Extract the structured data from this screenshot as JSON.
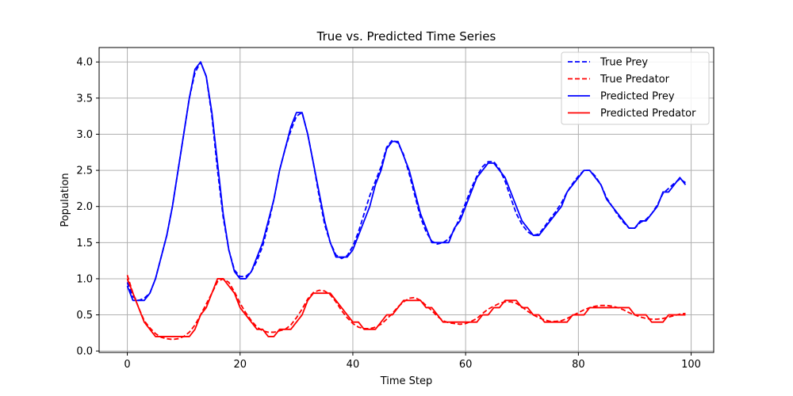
{
  "chart_data": {
    "type": "line",
    "title": "True vs. Predicted Time Series",
    "xlabel": "Time Step",
    "ylabel": "Population",
    "xlim": [
      -5,
      104
    ],
    "ylim": [
      -0.02,
      4.2
    ],
    "xticks": [
      0,
      20,
      40,
      60,
      80,
      100
    ],
    "yticks": [
      0.0,
      0.5,
      1.0,
      1.5,
      2.0,
      2.5,
      3.0,
      3.5,
      4.0
    ],
    "ytick_labels": [
      "0.0",
      "0.5",
      "1.0",
      "1.5",
      "2.0",
      "2.5",
      "3.0",
      "3.5",
      "4.0"
    ],
    "grid": true,
    "legend_position": "top-right",
    "x": [
      0,
      1,
      2,
      3,
      4,
      5,
      6,
      7,
      8,
      9,
      10,
      11,
      12,
      13,
      14,
      15,
      16,
      17,
      18,
      19,
      20,
      21,
      22,
      23,
      24,
      25,
      26,
      27,
      28,
      29,
      30,
      31,
      32,
      33,
      34,
      35,
      36,
      37,
      38,
      39,
      40,
      41,
      42,
      43,
      44,
      45,
      46,
      47,
      48,
      49,
      50,
      51,
      52,
      53,
      54,
      55,
      56,
      57,
      58,
      59,
      60,
      61,
      62,
      63,
      64,
      65,
      66,
      67,
      68,
      69,
      70,
      71,
      72,
      73,
      74,
      75,
      76,
      77,
      78,
      79,
      80,
      81,
      82,
      83,
      84,
      85,
      86,
      87,
      88,
      89,
      90,
      91,
      92,
      93,
      94,
      95,
      96,
      97,
      98,
      99
    ],
    "series": [
      {
        "name": "True Prey",
        "color": "#0000ff",
        "style": "dashed",
        "values": [
          0.95,
          0.75,
          0.7,
          0.73,
          0.8,
          1.0,
          1.3,
          1.6,
          2.0,
          2.5,
          3.0,
          3.5,
          3.85,
          4.0,
          3.8,
          3.25,
          2.5,
          1.85,
          1.4,
          1.12,
          1.03,
          1.03,
          1.1,
          1.25,
          1.45,
          1.75,
          2.1,
          2.5,
          2.8,
          3.05,
          3.25,
          3.3,
          3.0,
          2.6,
          2.15,
          1.75,
          1.5,
          1.33,
          1.28,
          1.32,
          1.45,
          1.65,
          1.9,
          2.15,
          2.35,
          2.55,
          2.82,
          2.92,
          2.88,
          2.72,
          2.45,
          2.15,
          1.85,
          1.65,
          1.52,
          1.48,
          1.5,
          1.55,
          1.68,
          1.85,
          2.05,
          2.25,
          2.42,
          2.55,
          2.62,
          2.62,
          2.52,
          2.35,
          2.12,
          1.9,
          1.75,
          1.65,
          1.6,
          1.62,
          1.72,
          1.83,
          1.93,
          2.05,
          2.2,
          2.32,
          2.42,
          2.5,
          2.5,
          2.42,
          2.3,
          2.12,
          2.0,
          1.88,
          1.78,
          1.7,
          1.7,
          1.78,
          1.82,
          1.9,
          2.02,
          2.18,
          2.25,
          2.32,
          2.38,
          2.33
        ]
      },
      {
        "name": "True Predator",
        "color": "#ff0000",
        "style": "dashed",
        "values": [
          1.05,
          0.8,
          0.6,
          0.42,
          0.32,
          0.24,
          0.19,
          0.17,
          0.16,
          0.17,
          0.2,
          0.26,
          0.36,
          0.5,
          0.65,
          0.8,
          0.96,
          1.0,
          0.95,
          0.82,
          0.66,
          0.53,
          0.42,
          0.33,
          0.28,
          0.26,
          0.26,
          0.28,
          0.3,
          0.36,
          0.46,
          0.58,
          0.72,
          0.81,
          0.84,
          0.83,
          0.78,
          0.68,
          0.56,
          0.46,
          0.38,
          0.33,
          0.31,
          0.31,
          0.33,
          0.37,
          0.44,
          0.52,
          0.61,
          0.68,
          0.73,
          0.74,
          0.7,
          0.63,
          0.56,
          0.48,
          0.42,
          0.39,
          0.38,
          0.37,
          0.38,
          0.41,
          0.45,
          0.52,
          0.58,
          0.62,
          0.66,
          0.68,
          0.68,
          0.66,
          0.61,
          0.55,
          0.5,
          0.46,
          0.43,
          0.41,
          0.41,
          0.42,
          0.45,
          0.49,
          0.53,
          0.57,
          0.6,
          0.62,
          0.63,
          0.63,
          0.62,
          0.6,
          0.57,
          0.53,
          0.5,
          0.47,
          0.45,
          0.44,
          0.44,
          0.45,
          0.47,
          0.49,
          0.51,
          0.52
        ]
      },
      {
        "name": "Predicted Prey",
        "color": "#0000ff",
        "style": "solid",
        "values": [
          0.9,
          0.7,
          0.7,
          0.7,
          0.8,
          1.0,
          1.3,
          1.6,
          2.0,
          2.5,
          3.0,
          3.5,
          3.9,
          4.0,
          3.8,
          3.3,
          2.6,
          1.9,
          1.4,
          1.1,
          1.0,
          1.0,
          1.1,
          1.3,
          1.5,
          1.8,
          2.1,
          2.5,
          2.8,
          3.1,
          3.3,
          3.3,
          3.0,
          2.6,
          2.2,
          1.8,
          1.5,
          1.3,
          1.3,
          1.3,
          1.4,
          1.6,
          1.8,
          2.0,
          2.3,
          2.5,
          2.8,
          2.9,
          2.9,
          2.7,
          2.5,
          2.2,
          1.9,
          1.7,
          1.5,
          1.5,
          1.5,
          1.5,
          1.7,
          1.8,
          2.0,
          2.2,
          2.4,
          2.5,
          2.6,
          2.6,
          2.5,
          2.4,
          2.2,
          2.0,
          1.8,
          1.7,
          1.6,
          1.6,
          1.7,
          1.8,
          1.9,
          2.0,
          2.2,
          2.3,
          2.4,
          2.5,
          2.5,
          2.4,
          2.3,
          2.1,
          2.0,
          1.9,
          1.8,
          1.7,
          1.7,
          1.8,
          1.8,
          1.9,
          2.0,
          2.2,
          2.2,
          2.3,
          2.4,
          2.3
        ]
      },
      {
        "name": "Predicted Predator",
        "color": "#ff0000",
        "style": "solid",
        "values": [
          1.0,
          0.8,
          0.6,
          0.4,
          0.3,
          0.2,
          0.2,
          0.2,
          0.2,
          0.2,
          0.2,
          0.2,
          0.3,
          0.5,
          0.6,
          0.8,
          1.0,
          1.0,
          0.9,
          0.8,
          0.6,
          0.5,
          0.4,
          0.3,
          0.3,
          0.2,
          0.2,
          0.3,
          0.3,
          0.3,
          0.4,
          0.5,
          0.7,
          0.8,
          0.8,
          0.8,
          0.8,
          0.7,
          0.6,
          0.5,
          0.4,
          0.4,
          0.3,
          0.3,
          0.3,
          0.4,
          0.5,
          0.5,
          0.6,
          0.7,
          0.7,
          0.7,
          0.7,
          0.6,
          0.6,
          0.5,
          0.4,
          0.4,
          0.4,
          0.4,
          0.4,
          0.4,
          0.4,
          0.5,
          0.5,
          0.6,
          0.6,
          0.7,
          0.7,
          0.7,
          0.6,
          0.6,
          0.5,
          0.5,
          0.4,
          0.4,
          0.4,
          0.4,
          0.4,
          0.5,
          0.5,
          0.5,
          0.6,
          0.6,
          0.6,
          0.6,
          0.6,
          0.6,
          0.6,
          0.6,
          0.5,
          0.5,
          0.5,
          0.4,
          0.4,
          0.4,
          0.5,
          0.5,
          0.5,
          0.5
        ]
      }
    ]
  }
}
